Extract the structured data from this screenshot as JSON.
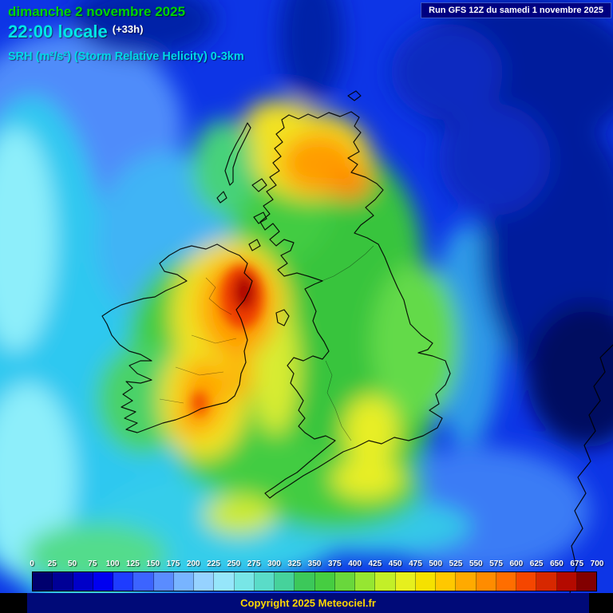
{
  "header": {
    "date": "dimanche 2 novembre 2025",
    "time": "22:00 locale",
    "offset": "(+33h)",
    "parameter": "SRH (m²/s²) (Storm Relative Helicity) 0-3km",
    "run_label": "Run GFS 12Z du samedi 1 novembre 2025"
  },
  "footer": {
    "copyright": "Copyright 2025 Meteociel.fr"
  },
  "colors": {
    "date_text": "#00d400",
    "time_text": "#00e6e6",
    "parameter_text": "#00d8e8",
    "run_box_bg": "#000080",
    "run_box_text": "#ffffff",
    "copyright_bg": "#000a78",
    "copyright_text": "#ffd700",
    "ocean_base": "#0d35e6"
  },
  "colorbar": {
    "unit": "m²/s²",
    "tick_labels": [
      "0",
      "25",
      "50",
      "75",
      "100",
      "125",
      "150",
      "175",
      "200",
      "225",
      "250",
      "275",
      "300",
      "325",
      "350",
      "375",
      "400",
      "425",
      "450",
      "475",
      "500",
      "525",
      "550",
      "575",
      "600",
      "625",
      "650",
      "675",
      "700"
    ],
    "cell_colors": [
      "#00006e",
      "#000096",
      "#0000c8",
      "#0000f0",
      "#1e3cff",
      "#3c64ff",
      "#5a8cff",
      "#78b4ff",
      "#96d2ff",
      "#96e6fa",
      "#78e6e6",
      "#5adcc8",
      "#46d29b",
      "#3cc85a",
      "#46cd41",
      "#69d73c",
      "#96e632",
      "#c3ef28",
      "#e6ef1e",
      "#f5e100",
      "#ffc800",
      "#ffaa00",
      "#ff8c00",
      "#ff6e00",
      "#f54600",
      "#d72800",
      "#b40a00",
      "#820000"
    ]
  }
}
